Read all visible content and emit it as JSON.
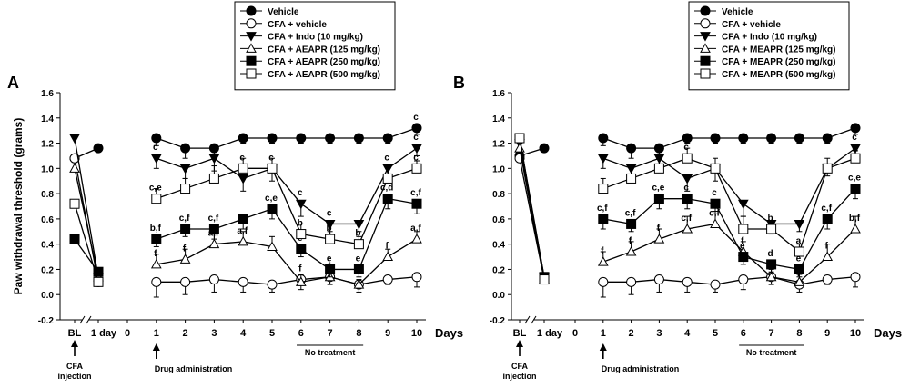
{
  "chart_data": [
    {
      "type": "line",
      "panel_label": "A",
      "ylabel": "Paw withdrawal threshold (grams)",
      "xlabel": "Days",
      "ylim": [
        -0.2,
        1.6
      ],
      "y_ticks": [
        "-0.2",
        "0.0",
        "0.2",
        "0.4",
        "0.6",
        "0.8",
        "1.0",
        "1.2",
        "1.4",
        "1.6"
      ],
      "baseline_ticks": [
        "BL",
        "1 day"
      ],
      "x_ticks": [
        "0",
        "1",
        "2",
        "3",
        "4",
        "5",
        "6",
        "7",
        "8",
        "9",
        "10"
      ],
      "annotations": {
        "cfa_injection": [
          "CFA",
          "injection"
        ],
        "drug_administration": "Drug administration",
        "no_treatment": "No treatment"
      },
      "legend": [
        "Vehicle",
        "CFA + vehicle",
        "CFA + Indo (10 mg/kg)",
        "CFA + AEAPR (125 mg/kg)",
        "CFA + AEAPR (250 mg/kg)",
        "CFA + AEAPR (500 mg/kg)"
      ],
      "x": [
        1,
        2,
        3,
        4,
        5,
        6,
        7,
        8,
        9,
        10
      ],
      "series": [
        {
          "name": "Vehicle",
          "marker": "filled-circle",
          "baseline": [
            1.08,
            1.16
          ],
          "values": [
            1.24,
            1.16,
            1.16,
            1.24,
            1.24,
            1.24,
            1.24,
            1.24,
            1.24,
            1.32
          ],
          "errors": [
            0.06,
            0.08,
            0.08,
            0.04,
            0.04,
            0.04,
            0.04,
            0.04,
            0.04,
            0.05
          ],
          "labels": [
            "",
            "",
            "",
            "",
            "",
            "",
            "",
            "",
            "",
            "c"
          ]
        },
        {
          "name": "CFA + vehicle",
          "marker": "open-circle",
          "baseline": [
            1.08,
            0.1
          ],
          "values": [
            0.1,
            0.1,
            0.12,
            0.1,
            0.08,
            0.12,
            0.14,
            0.08,
            0.12,
            0.14
          ],
          "errors": [
            0.12,
            0.1,
            0.1,
            0.08,
            0.06,
            0.08,
            0.06,
            0.06,
            0.04,
            0.08
          ],
          "labels": [
            "",
            "",
            "",
            "",
            "",
            "f",
            "f",
            "",
            "",
            ""
          ]
        },
        {
          "name": "CFA + Indo (10 mg/kg)",
          "marker": "filled-triangle-down",
          "baseline": [
            1.24,
            0.14
          ],
          "values": [
            1.08,
            1.0,
            1.08,
            0.92,
            1.0,
            0.72,
            0.56,
            0.56,
            1.0,
            1.16
          ],
          "errors": [
            0.08,
            0.08,
            0.1,
            0.1,
            0.1,
            0.1,
            0.08,
            0.06,
            0.06,
            0.06
          ],
          "labels": [
            "c",
            "",
            "c",
            "c",
            "c",
            "c",
            "c",
            "",
            "c",
            "c"
          ]
        },
        {
          "name": "CFA + AEAPR (125 mg/kg)",
          "marker": "open-triangle-up",
          "baseline": [
            1.0,
            0.14
          ],
          "values": [
            0.24,
            0.28,
            0.4,
            0.42,
            0.38,
            0.1,
            0.14,
            0.08,
            0.3,
            0.44
          ],
          "errors": [
            0.08,
            0.08,
            0.08,
            0.08,
            0.08,
            0.06,
            0.06,
            0.04,
            0.06,
            0.06
          ],
          "labels": [
            "f",
            "f",
            "a,f",
            "a,f",
            "",
            "",
            "",
            "",
            "f",
            "a,f"
          ]
        },
        {
          "name": "CFA + AEAPR (250 mg/kg)",
          "marker": "filled-square",
          "baseline": [
            0.44,
            0.18
          ],
          "values": [
            0.44,
            0.52,
            0.52,
            0.6,
            0.68,
            0.36,
            0.2,
            0.2,
            0.76,
            0.72
          ],
          "errors": [
            0.06,
            0.06,
            0.08,
            0.08,
            0.08,
            0.06,
            0.06,
            0.06,
            0.08,
            0.08
          ],
          "labels": [
            "b,f",
            "c,f",
            "c,f",
            "",
            "c,e",
            "e",
            "e",
            "e",
            "c,d",
            "c,f"
          ]
        },
        {
          "name": "CFA + AEAPR (500 mg/kg)",
          "marker": "open-square",
          "baseline": [
            0.72,
            0.1
          ],
          "values": [
            0.76,
            0.84,
            0.92,
            1.0,
            1.0,
            0.48,
            0.44,
            0.4,
            0.92,
            1.0
          ],
          "errors": [
            0.08,
            0.08,
            0.1,
            0.08,
            0.08,
            0.08,
            0.06,
            0.06,
            0.08,
            0.06
          ],
          "labels": [
            "c,e",
            "",
            "",
            "c",
            "",
            "b",
            "b",
            "b",
            "",
            "c"
          ]
        }
      ]
    },
    {
      "type": "line",
      "panel_label": "B",
      "ylabel": "",
      "xlabel": "Days",
      "ylim": [
        -0.2,
        1.6
      ],
      "y_ticks": [
        "-0.2",
        "0.0",
        "0.2",
        "0.4",
        "0.6",
        "0.8",
        "1.0",
        "1.2",
        "1.4",
        "1.6"
      ],
      "baseline_ticks": [
        "BL",
        "1 day"
      ],
      "x_ticks": [
        "0",
        "1",
        "2",
        "3",
        "4",
        "5",
        "6",
        "7",
        "8",
        "9",
        "10"
      ],
      "annotations": {
        "cfa_injection": [
          "CFA",
          "injection"
        ],
        "drug_administration": "Drug administration",
        "no_treatment": "No treatment"
      },
      "legend": [
        "Vehicle",
        "CFA + vehicle",
        "CFA + Indo (10 mg/kg)",
        "CFA + MEAPR (125 mg/kg)",
        "CFA + MEAPR (250 mg/kg)",
        "CFA + MEAPR (500 mg/kg)"
      ],
      "x": [
        1,
        2,
        3,
        4,
        5,
        6,
        7,
        8,
        9,
        10
      ],
      "series": [
        {
          "name": "Vehicle",
          "marker": "filled-circle",
          "baseline": [
            1.1,
            1.16
          ],
          "values": [
            1.24,
            1.16,
            1.16,
            1.24,
            1.24,
            1.24,
            1.24,
            1.24,
            1.24,
            1.32
          ],
          "errors": [
            0.06,
            0.08,
            0.08,
            0.04,
            0.04,
            0.04,
            0.04,
            0.04,
            0.04,
            0.05
          ],
          "labels": [
            "",
            "",
            "",
            "",
            "",
            "",
            "",
            "",
            "",
            ""
          ]
        },
        {
          "name": "CFA + vehicle",
          "marker": "open-circle",
          "baseline": [
            1.08,
            0.12
          ],
          "values": [
            0.1,
            0.1,
            0.12,
            0.1,
            0.08,
            0.12,
            0.14,
            0.08,
            0.12,
            0.14
          ],
          "errors": [
            0.12,
            0.1,
            0.1,
            0.08,
            0.06,
            0.08,
            0.06,
            0.06,
            0.04,
            0.08
          ],
          "labels": [
            "",
            "",
            "",
            "",
            "",
            "",
            "f",
            "f",
            "",
            ""
          ]
        },
        {
          "name": "CFA + Indo (10 mg/kg)",
          "marker": "filled-triangle-down",
          "baseline": [
            1.2,
            0.14
          ],
          "values": [
            1.08,
            1.0,
            1.08,
            0.92,
            1.0,
            0.72,
            0.56,
            0.56,
            1.0,
            1.16
          ],
          "errors": [
            0.08,
            0.08,
            0.1,
            0.1,
            0.1,
            0.1,
            0.08,
            0.06,
            0.06,
            0.06
          ],
          "labels": [
            "",
            "",
            "",
            "",
            "",
            "",
            "",
            "",
            "",
            "c"
          ]
        },
        {
          "name": "CFA + MEAPR (125 mg/kg)",
          "marker": "open-triangle-up",
          "baseline": [
            1.16,
            0.12
          ],
          "values": [
            0.26,
            0.34,
            0.44,
            0.52,
            0.56,
            0.34,
            0.14,
            0.1,
            0.3,
            0.52
          ],
          "errors": [
            0.08,
            0.08,
            0.08,
            0.1,
            0.1,
            0.08,
            0.06,
            0.06,
            0.1,
            0.1
          ],
          "labels": [
            "f",
            "f",
            "f",
            "c,f",
            "c,f",
            "f",
            "",
            "f",
            "f",
            "b,f"
          ]
        },
        {
          "name": "CFA + MEAPR (250 mg/kg)",
          "marker": "filled-square",
          "baseline": [
            1.24,
            0.14
          ],
          "values": [
            0.6,
            0.56,
            0.76,
            0.76,
            0.72,
            0.3,
            0.24,
            0.2,
            0.6,
            0.84
          ],
          "errors": [
            0.08,
            0.06,
            0.08,
            0.08,
            0.08,
            0.06,
            0.06,
            0.06,
            0.08,
            0.08
          ],
          "labels": [
            "c,f",
            "c,f",
            "c,e",
            "c",
            "c",
            "e",
            "d",
            "e",
            "c,f",
            "c,e"
          ]
        },
        {
          "name": "CFA + MEAPR (500 mg/kg)",
          "marker": "open-square",
          "baseline": [
            1.24,
            0.12
          ],
          "values": [
            0.84,
            0.92,
            1.0,
            1.08,
            1.0,
            0.52,
            0.52,
            0.34,
            1.0,
            1.08
          ],
          "errors": [
            0.08,
            0.08,
            0.1,
            0.08,
            0.08,
            0.1,
            0.06,
            0.06,
            0.08,
            0.06
          ],
          "labels": [
            "",
            "",
            "c",
            "c",
            "",
            "",
            "b",
            "a",
            "",
            "c"
          ]
        }
      ]
    }
  ]
}
